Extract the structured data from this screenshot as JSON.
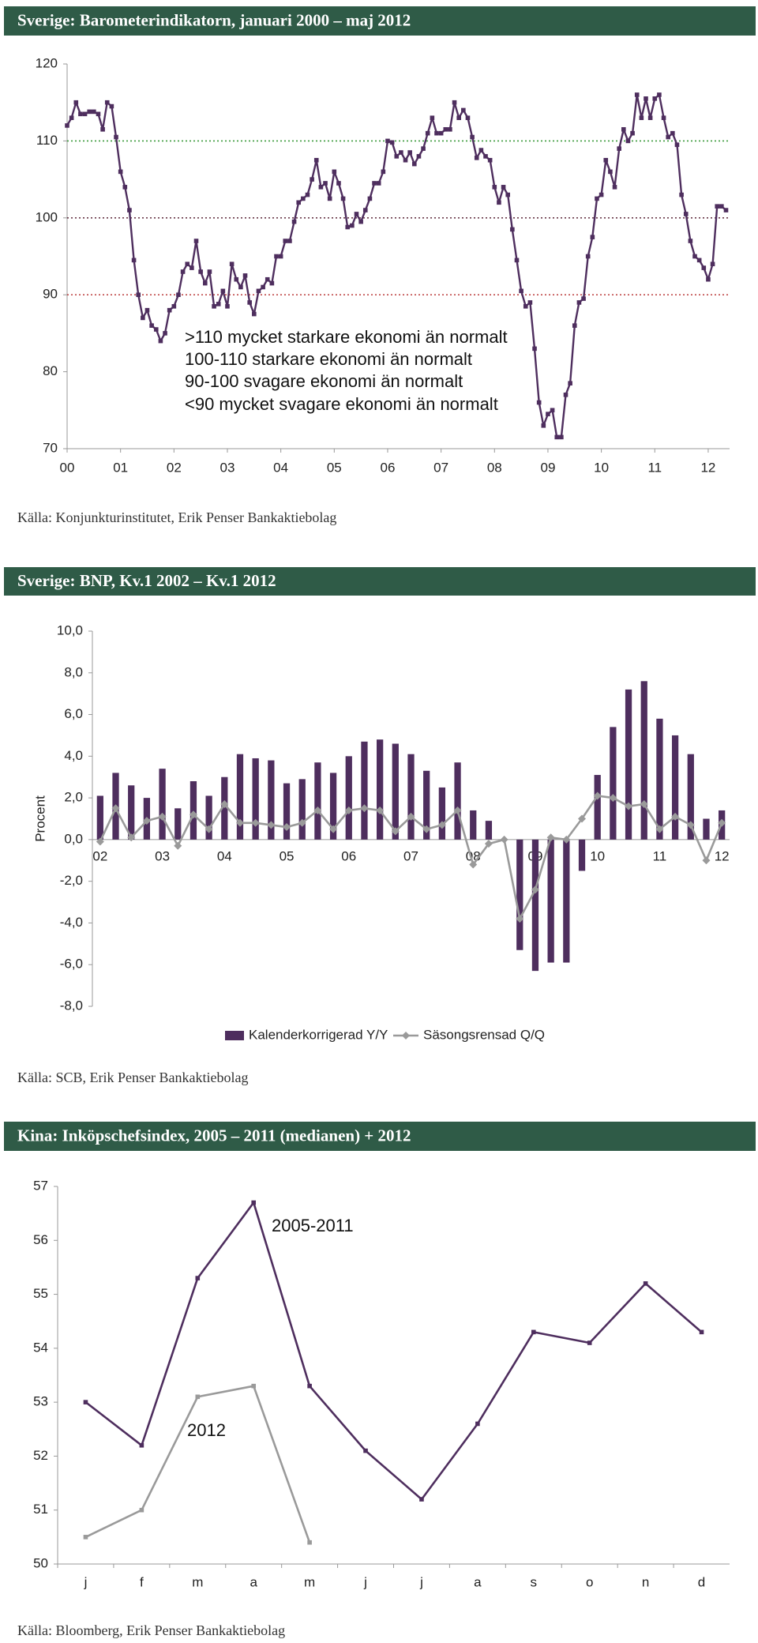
{
  "chart_data": [
    {
      "type": "line",
      "title": "Sverige: Barometerindikatorn, januari 2000 – maj 2012",
      "source": "Källa: Konjunkturinstitutet, Erik Penser Bankaktiebolag",
      "ylim": [
        70,
        120
      ],
      "yticks": [
        70,
        80,
        90,
        100,
        110,
        120
      ],
      "xlim": [
        0,
        12.4
      ],
      "xticks": [
        {
          "value": 0,
          "label": "00"
        },
        {
          "value": 1,
          "label": "01"
        },
        {
          "value": 2,
          "label": "02"
        },
        {
          "value": 3,
          "label": "03"
        },
        {
          "value": 4,
          "label": "04"
        },
        {
          "value": 5,
          "label": "05"
        },
        {
          "value": 6,
          "label": "06"
        },
        {
          "value": 7,
          "label": "07"
        },
        {
          "value": 8,
          "label": "08"
        },
        {
          "value": 9,
          "label": "09"
        },
        10,
        11,
        12
      ],
      "reference_lines": [
        {
          "value": 110,
          "color": "#3c9a3c"
        },
        {
          "value": 100,
          "color": "#6a3a4a"
        },
        {
          "value": 90,
          "color": "#c04a4a"
        }
      ],
      "annotations": [
        ">110 mycket starkare ekonomi än normalt",
        "100-110 starkare ekonomi än normalt",
        "90-100 svagare ekonomi än normalt",
        "<90 mycket svagare ekonomi än normalt"
      ],
      "series": [
        {
          "name": "Barometerindikatorn",
          "type": "line",
          "marker": "square",
          "color": "#4e2e5e",
          "values": [
            112,
            113,
            115,
            113.5,
            113.5,
            113.8,
            113.8,
            113.5,
            111.5,
            115,
            114.5,
            110.5,
            106,
            104,
            101,
            94.5,
            90,
            87,
            88,
            86,
            85.5,
            84,
            85,
            88,
            88.5,
            90,
            93,
            94,
            93.5,
            97,
            93,
            91.5,
            93,
            88.5,
            88.8,
            90.5,
            88.5,
            94,
            92,
            91,
            92.5,
            89,
            87.5,
            90.5,
            91,
            92,
            91.5,
            95,
            95,
            97,
            97,
            99.5,
            102,
            102.5,
            103,
            105,
            107.5,
            104,
            104.5,
            102.5,
            106,
            104.5,
            102.5,
            98.8,
            99,
            100.5,
            99.5,
            101,
            102.5,
            104.5,
            104.5,
            106,
            110,
            109.8,
            108,
            108.5,
            107.5,
            108.5,
            107,
            108,
            109,
            111,
            113,
            111,
            111,
            111.5,
            111.5,
            115,
            113,
            114,
            113,
            110.5,
            107.8,
            108.8,
            108,
            107.5,
            104,
            102,
            104,
            103,
            98.5,
            94.5,
            90.5,
            88.5,
            89,
            83,
            76,
            73,
            74.5,
            75,
            71.5,
            71.5,
            77,
            78.5,
            86,
            89,
            89.5,
            95,
            97.5,
            102.5,
            103,
            107.5,
            106,
            104,
            109,
            111.5,
            110,
            111,
            116,
            113,
            115.5,
            113,
            115.5,
            116,
            113,
            110.5,
            111,
            109.5,
            103,
            100.5,
            97,
            95,
            94.5,
            93.5,
            92,
            94,
            101.5,
            101.5,
            101
          ]
        }
      ]
    },
    {
      "type": "bar",
      "title": "Sverige: BNP, Kv.1 2002 – Kv.1 2012",
      "source": "Källa: SCB, Erik Penser Bankaktiebolag",
      "ylabel": "Procent",
      "ylim": [
        -8,
        10
      ],
      "yticks": [
        {
          "value": -8,
          "label": "-8,0"
        },
        {
          "value": -6,
          "label": "-6,0"
        },
        {
          "value": -4,
          "label": "-4,0"
        },
        {
          "value": -2,
          "label": "-2,0"
        },
        {
          "value": 0,
          "label": "0,0"
        },
        {
          "value": 2,
          "label": "2,0"
        },
        {
          "value": 4,
          "label": "4,0"
        },
        {
          "value": 6,
          "label": "6,0"
        },
        {
          "value": 8,
          "label": "8,0"
        },
        {
          "value": 10,
          "label": "10,0"
        }
      ],
      "categories": [
        "02",
        null,
        null,
        null,
        "03",
        null,
        null,
        null,
        "04",
        null,
        null,
        null,
        "05",
        null,
        null,
        null,
        "06",
        null,
        null,
        null,
        "07",
        null,
        null,
        null,
        "08",
        null,
        null,
        null,
        "09",
        null,
        null,
        null,
        "10",
        null,
        null,
        null,
        "11",
        null,
        null,
        null,
        "12"
      ],
      "legend": "bottom",
      "series": [
        {
          "name": "Kalenderkorrigerad Y/Y",
          "type": "bar",
          "color": "#4e2e5e",
          "values": [
            2.1,
            3.2,
            2.6,
            2.0,
            3.4,
            1.5,
            2.8,
            2.1,
            3.0,
            4.1,
            3.9,
            3.8,
            2.7,
            2.9,
            3.7,
            3.2,
            4.0,
            4.7,
            4.8,
            4.6,
            4.1,
            3.3,
            2.5,
            3.7,
            1.4,
            0.9,
            0,
            -5.3,
            -6.3,
            -5.9,
            -5.9,
            -1.5,
            3.1,
            5.4,
            7.2,
            7.6,
            5.8,
            5.0,
            4.1,
            1.0,
            1.4
          ]
        },
        {
          "name": "Säsongsrensad Q/Q",
          "type": "line",
          "marker": "diamond",
          "color": "#9a9a9a",
          "values": [
            -0.1,
            1.5,
            0.1,
            0.9,
            1.1,
            -0.3,
            1.2,
            0.5,
            1.7,
            0.8,
            0.8,
            0.7,
            0.6,
            0.8,
            1.4,
            0.5,
            1.4,
            1.5,
            1.4,
            0.4,
            1.1,
            0.5,
            0.7,
            1.4,
            -1.2,
            -0.2,
            0.0,
            -3.8,
            -2.4,
            0.1,
            0.0,
            1.0,
            2.1,
            2.0,
            1.6,
            1.7,
            0.5,
            1.1,
            0.7,
            -1.0,
            0.8
          ]
        }
      ]
    },
    {
      "type": "line",
      "title": "Kina: Inköpschefsindex, 2005 – 2011 (medianen) + 2012",
      "source": "Källa: Bloomberg, Erik Penser Bankaktiebolag",
      "ylim": [
        50,
        57
      ],
      "yticks": [
        50,
        51,
        52,
        53,
        54,
        55,
        56,
        57
      ],
      "categories": [
        "j",
        "f",
        "m",
        "a",
        "m",
        "j",
        "j",
        "a",
        "s",
        "o",
        "n",
        "d"
      ],
      "series_labels": true,
      "series": [
        {
          "name": "2005-2011",
          "type": "line",
          "marker": "square",
          "color": "#4e2e5e",
          "values": [
            53.0,
            52.2,
            55.3,
            56.7,
            53.3,
            52.1,
            51.2,
            52.6,
            54.3,
            54.1,
            55.2,
            54.3
          ]
        },
        {
          "name": "2012",
          "type": "line",
          "marker": "square",
          "color": "#9a9a9a",
          "values": [
            50.5,
            51.0,
            53.1,
            53.3,
            50.4,
            null,
            null,
            null,
            null,
            null,
            null,
            null
          ]
        }
      ]
    }
  ]
}
